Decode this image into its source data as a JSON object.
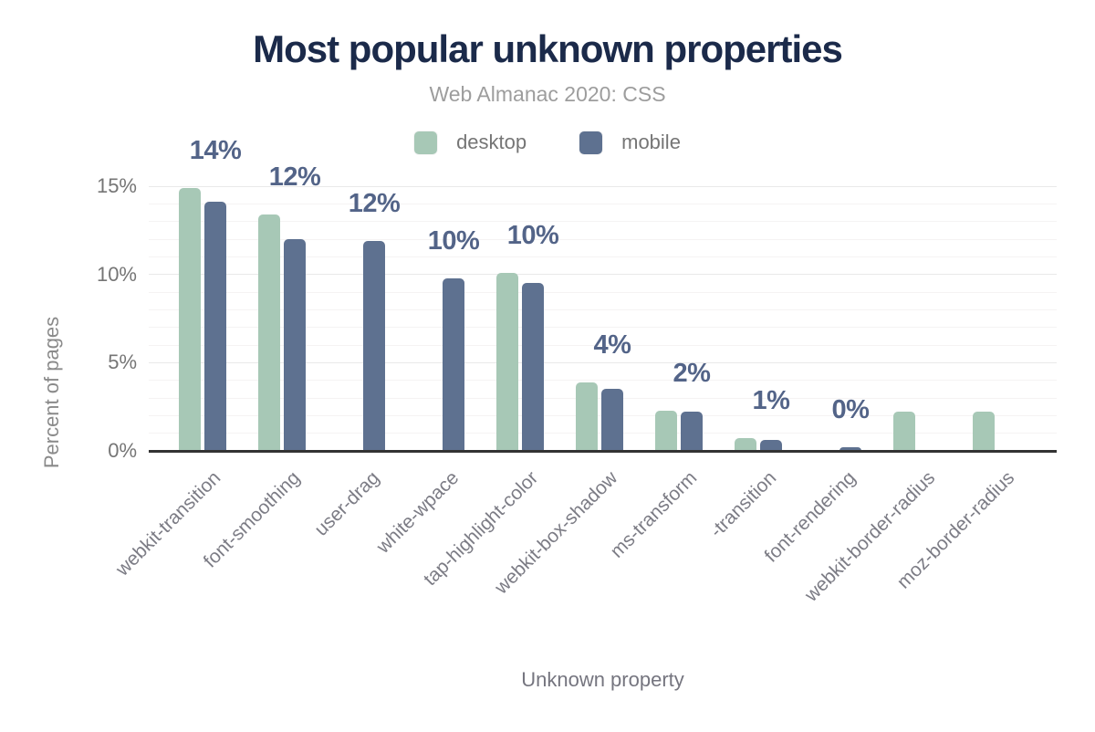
{
  "header": {
    "title": "Most popular unknown properties",
    "subtitle": "Web Almanac 2020: CSS"
  },
  "colors": {
    "title_text": "#1b2a4a",
    "subtitle_text": "#9d9d9d",
    "axis_text": "#757575",
    "data_label_text": "#536488",
    "desktop_bar": "#a7c8b6",
    "mobile_bar": "#5e7190",
    "baseline": "#333333",
    "major_gridline": "#e9e9e9",
    "minor_gridline": "#f5f3f3"
  },
  "chart_data": {
    "type": "bar",
    "title": "Most popular unknown properties",
    "subtitle": "Web Almanac 2020: CSS",
    "categories": [
      "webkit-transition",
      "font-smoothing",
      "user-drag",
      "white-wpace",
      "tap-highlight-color",
      "webkit-box-shadow",
      "ms-transform",
      "-transition",
      "font-rendering",
      "webkit-border-radius",
      "moz-border-radius"
    ],
    "series": [
      {
        "name": "desktop",
        "color": "#a7c8b6",
        "values": [
          14.9,
          13.4,
          0,
          0,
          10.1,
          3.9,
          2.3,
          0.7,
          0,
          2.2,
          2.2
        ]
      },
      {
        "name": "mobile",
        "color": "#5e7190",
        "values": [
          14.1,
          12.0,
          11.9,
          9.8,
          9.5,
          3.5,
          2.2,
          0.6,
          0.2,
          0,
          0
        ]
      }
    ],
    "bar_labels": [
      "14%",
      "12%",
      "12%",
      "10%",
      "10%",
      "4%",
      "2%",
      "1%",
      "0%",
      "",
      ""
    ],
    "xlabel": "Unknown property",
    "ylabel": "Percent of pages",
    "yticks": [
      {
        "value": 0,
        "label": "0%"
      },
      {
        "value": 5,
        "label": "5%"
      },
      {
        "value": 10,
        "label": "10%"
      },
      {
        "value": 15,
        "label": "15%"
      }
    ],
    "ylim": [
      0,
      15
    ],
    "grid": "horizontal; minor every 1%, major every 5%",
    "legend_position": "top-center"
  }
}
